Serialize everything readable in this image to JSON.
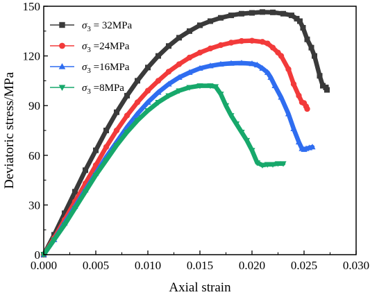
{
  "chart_data": {
    "type": "scatter",
    "xlabel": "Axial strain",
    "ylabel": "Deviatoric stress/MPa",
    "xlim": [
      0.0,
      0.03
    ],
    "ylim": [
      0,
      150
    ],
    "xticks": [
      "0.000",
      "0.005",
      "0.010",
      "0.015",
      "0.020",
      "0.025",
      "0.030"
    ],
    "yticks": [
      "0",
      "30",
      "60",
      "90",
      "120",
      "150"
    ],
    "grid": false,
    "legend_position": "top-left",
    "series": [
      {
        "name": "σ3 = 32MPa",
        "legend_prefix": "σ",
        "legend_sub": "3",
        "legend_suffix": " = 32MPa",
        "color": "#3a3a3a",
        "marker": "square",
        "points": [
          [
            0.0,
            0
          ],
          [
            0.001,
            12
          ],
          [
            0.002,
            25
          ],
          [
            0.003,
            38
          ],
          [
            0.004,
            51
          ],
          [
            0.005,
            63
          ],
          [
            0.006,
            75
          ],
          [
            0.007,
            86
          ],
          [
            0.008,
            96
          ],
          [
            0.009,
            105
          ],
          [
            0.01,
            113
          ],
          [
            0.011,
            120
          ],
          [
            0.012,
            126
          ],
          [
            0.013,
            131
          ],
          [
            0.014,
            135
          ],
          [
            0.015,
            138.5
          ],
          [
            0.016,
            141
          ],
          [
            0.017,
            143
          ],
          [
            0.018,
            144.5
          ],
          [
            0.019,
            145.5
          ],
          [
            0.02,
            146
          ],
          [
            0.021,
            146.5
          ],
          [
            0.022,
            146.3
          ],
          [
            0.023,
            145.5
          ],
          [
            0.0238,
            144.5
          ],
          [
            0.0243,
            142.5
          ],
          [
            0.0246,
            141
          ],
          [
            0.0249,
            137
          ],
          [
            0.0253,
            130
          ],
          [
            0.0257,
            125
          ],
          [
            0.026,
            120
          ],
          [
            0.0265,
            108
          ],
          [
            0.0268,
            102
          ],
          [
            0.0271,
            101
          ],
          [
            0.0272,
            99.5
          ]
        ]
      },
      {
        "name": "σ3 =24MPa",
        "legend_prefix": "σ",
        "legend_sub": "3",
        "legend_suffix": " =24MPa",
        "color": "#f23a3a",
        "marker": "circle",
        "points": [
          [
            0.0,
            0
          ],
          [
            0.001,
            10
          ],
          [
            0.002,
            21
          ],
          [
            0.003,
            32
          ],
          [
            0.004,
            43
          ],
          [
            0.005,
            54
          ],
          [
            0.006,
            65
          ],
          [
            0.007,
            75
          ],
          [
            0.008,
            84
          ],
          [
            0.009,
            92
          ],
          [
            0.01,
            99
          ],
          [
            0.011,
            105
          ],
          [
            0.012,
            110.5
          ],
          [
            0.013,
            115
          ],
          [
            0.014,
            119
          ],
          [
            0.015,
            122
          ],
          [
            0.016,
            124.5
          ],
          [
            0.017,
            126.5
          ],
          [
            0.018,
            128
          ],
          [
            0.019,
            129
          ],
          [
            0.02,
            129.2
          ],
          [
            0.021,
            128.5
          ],
          [
            0.0215,
            127.5
          ],
          [
            0.022,
            125
          ],
          [
            0.0225,
            122
          ],
          [
            0.0228,
            120
          ],
          [
            0.0235,
            112
          ],
          [
            0.024,
            103
          ],
          [
            0.0245,
            96
          ],
          [
            0.0248,
            92
          ],
          [
            0.025,
            91.5
          ],
          [
            0.0252,
            89.5
          ],
          [
            0.0253,
            88
          ]
        ]
      },
      {
        "name": "σ3 =16MPa",
        "legend_prefix": "σ",
        "legend_sub": "3",
        "legend_suffix": " =16MPa",
        "color": "#2f6df0",
        "marker": "triangle-up",
        "points": [
          [
            0.0,
            0
          ],
          [
            0.001,
            9
          ],
          [
            0.002,
            19
          ],
          [
            0.003,
            29
          ],
          [
            0.004,
            39
          ],
          [
            0.005,
            49
          ],
          [
            0.006,
            59
          ],
          [
            0.007,
            68
          ],
          [
            0.008,
            77
          ],
          [
            0.009,
            85
          ],
          [
            0.01,
            92
          ],
          [
            0.011,
            98
          ],
          [
            0.012,
            103
          ],
          [
            0.013,
            107
          ],
          [
            0.014,
            110
          ],
          [
            0.015,
            112.5
          ],
          [
            0.016,
            114
          ],
          [
            0.017,
            115
          ],
          [
            0.018,
            115.5
          ],
          [
            0.019,
            115.7
          ],
          [
            0.02,
            115.3
          ],
          [
            0.0205,
            114.5
          ],
          [
            0.021,
            112.5
          ],
          [
            0.0215,
            110
          ],
          [
            0.0218,
            107
          ],
          [
            0.0222,
            102
          ],
          [
            0.0228,
            95
          ],
          [
            0.0235,
            85
          ],
          [
            0.024,
            76
          ],
          [
            0.0245,
            68
          ],
          [
            0.0248,
            64
          ],
          [
            0.025,
            63.5
          ],
          [
            0.0252,
            64
          ],
          [
            0.0255,
            64.5
          ],
          [
            0.0258,
            65
          ]
        ]
      },
      {
        "name": "σ3 =8MPa",
        "legend_prefix": "σ",
        "legend_sub": "3",
        "legend_suffix": " =8MPa",
        "color": "#17a86b",
        "marker": "triangle-down",
        "points": [
          [
            0.0,
            0
          ],
          [
            0.001,
            9
          ],
          [
            0.002,
            18
          ],
          [
            0.003,
            28
          ],
          [
            0.004,
            38
          ],
          [
            0.005,
            48
          ],
          [
            0.006,
            57
          ],
          [
            0.007,
            66
          ],
          [
            0.008,
            74
          ],
          [
            0.009,
            81
          ],
          [
            0.01,
            87
          ],
          [
            0.011,
            92
          ],
          [
            0.012,
            96
          ],
          [
            0.013,
            99
          ],
          [
            0.014,
            101
          ],
          [
            0.015,
            102
          ],
          [
            0.016,
            102
          ],
          [
            0.0165,
            101.5
          ],
          [
            0.017,
            97
          ],
          [
            0.0175,
            90
          ],
          [
            0.018,
            84
          ],
          [
            0.0185,
            79
          ],
          [
            0.019,
            74
          ],
          [
            0.0195,
            69
          ],
          [
            0.02,
            63
          ],
          [
            0.0205,
            55.5
          ],
          [
            0.021,
            54
          ],
          [
            0.0215,
            54.5
          ],
          [
            0.022,
            54.5
          ],
          [
            0.0225,
            55
          ],
          [
            0.023,
            55
          ]
        ]
      }
    ]
  }
}
